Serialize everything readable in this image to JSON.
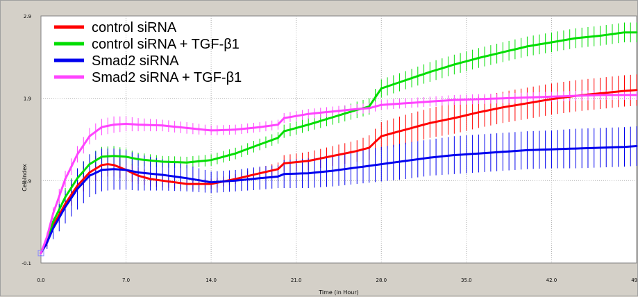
{
  "chart_data": {
    "type": "line",
    "xlabel": "Time (in Hour)",
    "ylabel": "Cell Index",
    "xlim": [
      0,
      49
    ],
    "ylim": [
      -0.1,
      2.9
    ],
    "xticks": [
      "0.0",
      "7.0",
      "14.0",
      "21.0",
      "28.0",
      "35.0",
      "42.0",
      "49.0"
    ],
    "xtick_values": [
      0,
      7,
      14,
      21,
      28,
      35,
      42,
      49
    ],
    "yticks": [
      "2.9",
      "1.9",
      "0.9",
      "-0.1"
    ],
    "ytick_values": [
      2.9,
      1.9,
      0.9,
      -0.1
    ],
    "grid": true,
    "legend_position": "top-left",
    "series": [
      {
        "name": "control siRNA",
        "color": "#ff0000",
        "x": [
          0,
          0.5,
          1,
          2,
          3,
          4,
          5,
          5.5,
          6,
          7,
          8,
          9,
          10,
          12,
          14,
          16,
          18,
          19.5,
          20,
          22,
          24,
          26,
          27,
          28,
          30,
          32,
          34,
          36,
          38,
          40,
          42,
          44,
          46,
          48,
          49
        ],
        "y": [
          0.02,
          0.15,
          0.35,
          0.62,
          0.84,
          1.0,
          1.09,
          1.1,
          1.09,
          1.03,
          0.96,
          0.92,
          0.9,
          0.86,
          0.86,
          0.92,
          0.99,
          1.04,
          1.11,
          1.14,
          1.2,
          1.26,
          1.3,
          1.44,
          1.52,
          1.6,
          1.66,
          1.73,
          1.79,
          1.84,
          1.89,
          1.93,
          1.96,
          1.99,
          2.0
        ],
        "err": [
          0.02,
          0.05,
          0.08,
          0.12,
          0.15,
          0.15,
          0.15,
          0.15,
          0.14,
          0.12,
          0.1,
          0.09,
          0.08,
          0.07,
          0.06,
          0.06,
          0.07,
          0.08,
          0.1,
          0.11,
          0.12,
          0.13,
          0.15,
          0.17,
          0.18,
          0.18,
          0.19,
          0.19,
          0.19,
          0.19,
          0.19,
          0.19,
          0.19,
          0.19,
          0.19
        ]
      },
      {
        "name": "control siRNA + TGF-β1",
        "color": "#00dd00",
        "x": [
          0,
          0.5,
          1,
          2,
          3,
          4,
          5,
          6,
          7,
          8,
          10,
          12,
          14,
          16,
          18,
          19.5,
          20,
          22,
          24,
          26,
          27,
          28,
          30,
          32,
          34,
          36,
          38,
          40,
          42,
          44,
          46,
          48,
          49
        ],
        "y": [
          0.02,
          0.18,
          0.4,
          0.7,
          0.93,
          1.1,
          1.19,
          1.2,
          1.19,
          1.16,
          1.13,
          1.12,
          1.15,
          1.23,
          1.34,
          1.42,
          1.5,
          1.58,
          1.67,
          1.76,
          1.8,
          2.02,
          2.12,
          2.22,
          2.31,
          2.39,
          2.46,
          2.53,
          2.58,
          2.63,
          2.66,
          2.7,
          2.7
        ],
        "err": [
          0.02,
          0.05,
          0.08,
          0.11,
          0.12,
          0.12,
          0.12,
          0.12,
          0.1,
          0.08,
          0.07,
          0.07,
          0.07,
          0.07,
          0.07,
          0.07,
          0.08,
          0.08,
          0.09,
          0.1,
          0.1,
          0.11,
          0.11,
          0.12,
          0.12,
          0.12,
          0.12,
          0.12,
          0.12,
          0.12,
          0.12,
          0.12,
          0.12
        ]
      },
      {
        "name": "Smad2 siRNA",
        "color": "#0000ee",
        "x": [
          0,
          0.5,
          1,
          2,
          3,
          4,
          5,
          6,
          7,
          8,
          10,
          12,
          14,
          16,
          18,
          19.5,
          20,
          22,
          24,
          26,
          28,
          30,
          32,
          34,
          36,
          38,
          40,
          42,
          44,
          46,
          48,
          49
        ],
        "y": [
          0.02,
          0.15,
          0.32,
          0.58,
          0.8,
          0.96,
          1.03,
          1.04,
          1.03,
          1.0,
          0.97,
          0.93,
          0.88,
          0.9,
          0.93,
          0.95,
          0.98,
          0.99,
          1.02,
          1.06,
          1.1,
          1.14,
          1.18,
          1.21,
          1.23,
          1.25,
          1.27,
          1.28,
          1.29,
          1.3,
          1.31,
          1.32
        ],
        "err": [
          0.03,
          0.08,
          0.13,
          0.2,
          0.25,
          0.26,
          0.26,
          0.25,
          0.24,
          0.22,
          0.19,
          0.16,
          0.13,
          0.13,
          0.14,
          0.14,
          0.17,
          0.18,
          0.19,
          0.2,
          0.21,
          0.22,
          0.22,
          0.23,
          0.23,
          0.23,
          0.23,
          0.23,
          0.24,
          0.24,
          0.24,
          0.24
        ]
      },
      {
        "name": "Smad2 siRNA + TGF-β1",
        "color": "#ff44ff",
        "x": [
          0,
          0.5,
          1,
          2,
          3,
          4,
          5,
          6,
          7,
          8,
          10,
          12,
          14,
          16,
          18,
          19.5,
          20,
          22,
          24,
          26,
          27,
          28,
          30,
          32,
          34,
          36,
          38,
          40,
          42,
          44,
          46,
          48,
          49
        ],
        "y": [
          0.02,
          0.22,
          0.5,
          0.92,
          1.22,
          1.44,
          1.55,
          1.58,
          1.59,
          1.58,
          1.57,
          1.54,
          1.51,
          1.52,
          1.55,
          1.58,
          1.66,
          1.71,
          1.74,
          1.77,
          1.78,
          1.82,
          1.84,
          1.86,
          1.88,
          1.89,
          1.9,
          1.91,
          1.92,
          1.93,
          1.94,
          1.94,
          1.94
        ],
        "err": [
          0.02,
          0.05,
          0.08,
          0.1,
          0.1,
          0.1,
          0.1,
          0.1,
          0.09,
          0.08,
          0.07,
          0.07,
          0.06,
          0.06,
          0.06,
          0.06,
          0.06,
          0.06,
          0.06,
          0.06,
          0.06,
          0.06,
          0.06,
          0.06,
          0.06,
          0.06,
          0.06,
          0.06,
          0.06,
          0.06,
          0.06,
          0.06,
          0.06
        ]
      }
    ]
  }
}
